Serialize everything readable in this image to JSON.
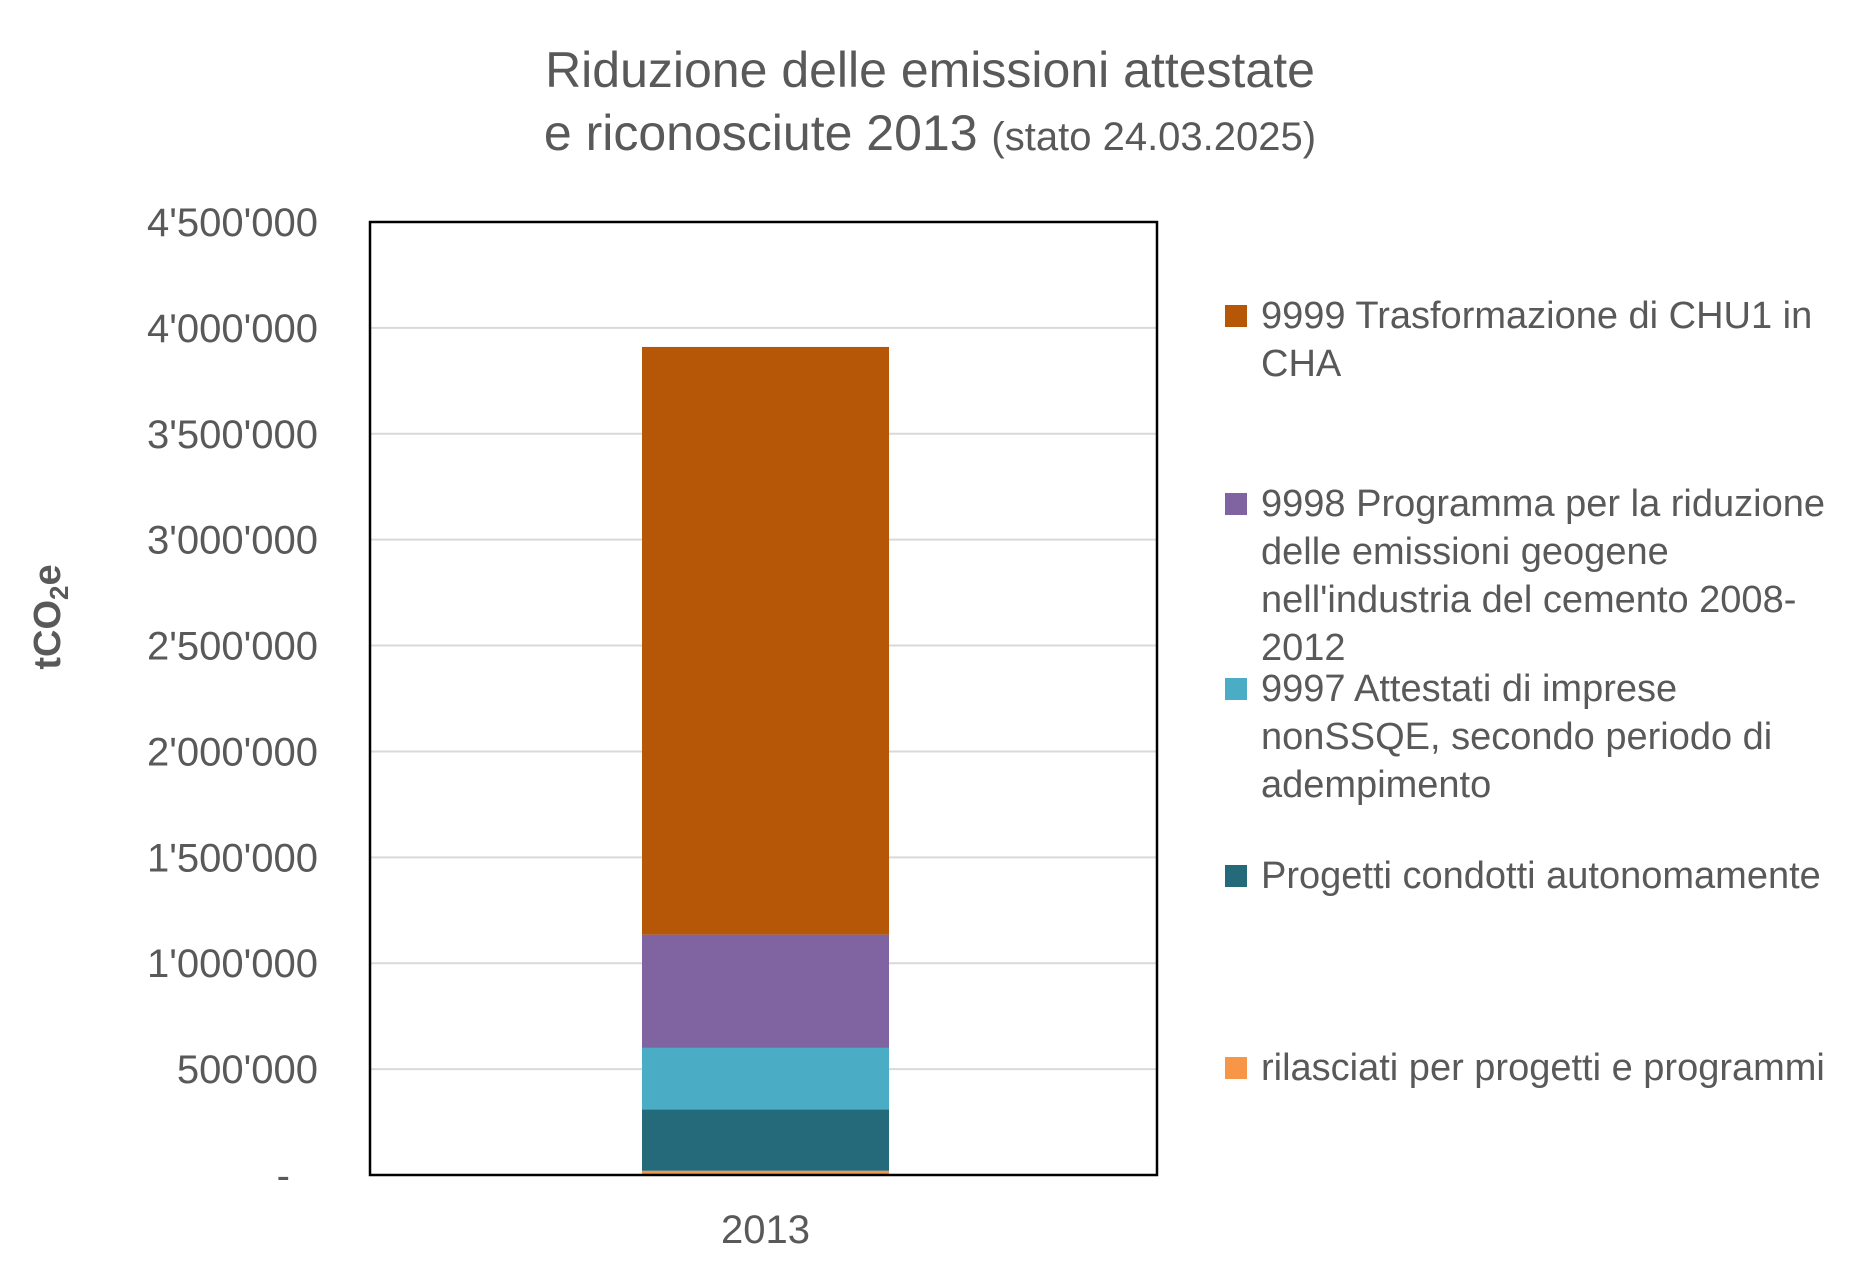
{
  "title": {
    "line1": "Riduzione delle emissioni attestate",
    "line2": "e riconosciute 2013",
    "subtitle": "(stato 24.03.2025)"
  },
  "chart_data": {
    "type": "bar",
    "stacked": true,
    "categories": [
      "2013"
    ],
    "ylabel_main": "tCO",
    "ylabel_sub": "2",
    "ylabel_end": "e",
    "ylim": [
      0,
      4500000
    ],
    "yticks": [
      {
        "value": 0,
        "label": "-"
      },
      {
        "value": 500000,
        "label": "500'000"
      },
      {
        "value": 1000000,
        "label": "1'000'000"
      },
      {
        "value": 1500000,
        "label": "1'500'000"
      },
      {
        "value": 2000000,
        "label": "2'000'000"
      },
      {
        "value": 2500000,
        "label": "2'500'000"
      },
      {
        "value": 3000000,
        "label": "3'000'000"
      },
      {
        "value": 3500000,
        "label": "3'500'000"
      },
      {
        "value": 4000000,
        "label": "4'000'000"
      },
      {
        "value": 4500000,
        "label": "4'500'000"
      }
    ],
    "grid": true,
    "legend_position": "right",
    "series": [
      {
        "name": "rilasciati per progetti e programmi",
        "values": [
          20000
        ],
        "color": "#F79646"
      },
      {
        "name": "Progetti condotti autonomamente",
        "values": [
          290000
        ],
        "color": "#256A7A"
      },
      {
        "name": "9997 Attestati di imprese nonSSQE, secondo periodo di adempimento",
        "values": [
          290000
        ],
        "color": "#4BACC6"
      },
      {
        "name": "9998 Programma per la riduzione delle emissioni geogene nell'industria del cemento 2008-2012",
        "values": [
          535000
        ],
        "color": "#8064A2"
      },
      {
        "name": "9999 Trasformazione di CHU1 in CHA",
        "values": [
          2775000
        ],
        "color": "#B65708"
      }
    ]
  }
}
